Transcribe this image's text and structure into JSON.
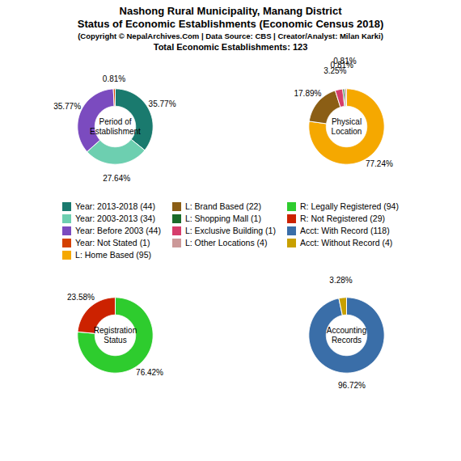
{
  "title": "Nashong Rural Municipality, Manang District\nStatus of Economic Establishments (Economic Census 2018)",
  "subtitle": "(Copyright © NepalArchives.Com | Data Source: CBS | Creator/Analyst: Milan Karki)",
  "annotations": [
    "Total Economic Establishments: 123"
  ],
  "chart_data": [
    {
      "type": "pie",
      "title": "Period of\nEstablishment",
      "values": [
        35.77,
        27.64,
        35.77,
        0.81
      ],
      "value_labels": [
        "35.77%",
        "27.64%",
        "35.77%",
        "0.81%"
      ],
      "colors": [
        "#1a7a6e",
        "#6dcfb0",
        "#7b4bbf",
        "#d44000"
      ],
      "data_labels": true
    },
    {
      "type": "pie",
      "title": "Physical\nLocation",
      "values": [
        77.24,
        17.89,
        3.25,
        0.81,
        0.81
      ],
      "value_labels": [
        "77.24%",
        "17.89%",
        "3.25%",
        "0.81%",
        "0.81%"
      ],
      "colors": [
        "#f5a800",
        "#8B5e15",
        "#d63d6b",
        "#1a6b2a",
        "#cc9999"
      ],
      "data_labels": true
    },
    {
      "type": "pie",
      "title": "Registration\nStatus",
      "values": [
        76.42,
        23.58
      ],
      "value_labels": [
        "76.42%",
        "23.58%"
      ],
      "colors": [
        "#2ecc2e",
        "#cc2200"
      ],
      "data_labels": true
    },
    {
      "type": "pie",
      "title": "Accounting\nRecords",
      "values": [
        96.72,
        3.28
      ],
      "value_labels": [
        "96.72%",
        "3.28%"
      ],
      "colors": [
        "#3a6ea8",
        "#c8a000"
      ],
      "data_labels": true
    },
    {
      "type": "legend",
      "categories": [
        "Year: 2013-2018 (44)",
        "Year: 2003-2013 (34)",
        "Year: Before 2003 (44)",
        "Year: Not Stated (1)",
        "L: Home Based (95)",
        "L: Brand Based (22)",
        "L: Shopping Mall (1)",
        "L: Exclusive Building (1)",
        "L: Other Locations (4)",
        "R: Legally Registered (94)",
        "R: Not Registered (29)",
        "Acct: With Record (118)",
        "Acct: Without Record (4)"
      ],
      "colors": [
        "#1a7a6e",
        "#6dcfb0",
        "#7b4bbf",
        "#d44000",
        "#f5a800",
        "#8B5e15",
        "#1a6b2a",
        "#d63d6b",
        "#cc9999",
        "#2ecc2e",
        "#cc2200",
        "#3a6ea8",
        "#c8a000"
      ]
    }
  ]
}
